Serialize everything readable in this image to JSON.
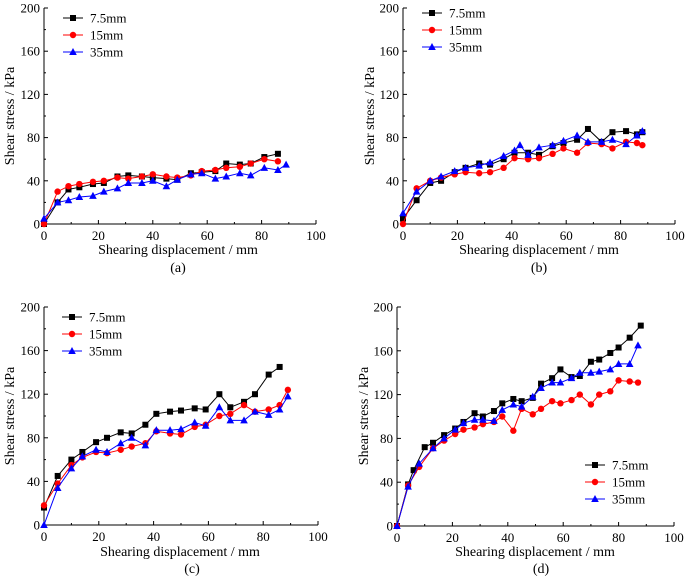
{
  "chart_data": [
    {
      "id": "a",
      "type": "line",
      "panel_label": "(a)",
      "xlabel": "Shearing displacement / mm",
      "ylabel": "Shear stress / kPa",
      "xlim": [
        0,
        100
      ],
      "ylim": [
        0,
        200
      ],
      "xticks": [
        0,
        20,
        40,
        60,
        80,
        100
      ],
      "yticks": [
        0,
        40,
        80,
        120,
        160,
        200
      ],
      "legend_position": "top-left",
      "series": [
        {
          "name": "7.5mm",
          "color": "#000000",
          "marker": "square",
          "x": [
            0,
            5,
            9,
            13,
            18,
            22,
            27,
            31,
            36,
            40,
            45,
            49,
            54,
            58,
            63,
            67,
            72,
            76,
            81,
            86
          ],
          "y": [
            0,
            20,
            32,
            34,
            37,
            38,
            44,
            45,
            44,
            43,
            42,
            41,
            47,
            48,
            49,
            56,
            55,
            56,
            62,
            65
          ]
        },
        {
          "name": "15mm",
          "color": "#ff0000",
          "marker": "circle",
          "x": [
            0,
            5,
            9,
            13,
            18,
            22,
            27,
            31,
            36,
            40,
            45,
            49,
            54,
            58,
            63,
            67,
            72,
            76,
            81,
            86
          ],
          "y": [
            0,
            30,
            35,
            37,
            39,
            40,
            43,
            42,
            44,
            46,
            44,
            43,
            45,
            49,
            50,
            52,
            53,
            56,
            60,
            58
          ]
        },
        {
          "name": "35mm",
          "color": "#0000ff",
          "marker": "triangle",
          "x": [
            0,
            5,
            9,
            13,
            18,
            22,
            27,
            31,
            36,
            40,
            45,
            49,
            54,
            58,
            63,
            67,
            72,
            76,
            81,
            86,
            89
          ],
          "y": [
            5,
            20,
            22,
            25,
            26,
            30,
            33,
            38,
            38,
            40,
            35,
            41,
            46,
            47,
            42,
            44,
            47,
            45,
            52,
            50,
            55
          ]
        }
      ]
    },
    {
      "id": "b",
      "type": "line",
      "panel_label": "(b)",
      "xlabel": "Shearing displacement / mm",
      "ylabel": "Shear stress / kPa",
      "xlim": [
        0,
        100
      ],
      "ylim": [
        0,
        200
      ],
      "xticks": [
        0,
        20,
        40,
        60,
        80,
        100
      ],
      "yticks": [
        0,
        40,
        80,
        120,
        160,
        200
      ],
      "legend_position": "top-left",
      "series": [
        {
          "name": "7.5mm",
          "color": "#000000",
          "marker": "square",
          "x": [
            0,
            5,
            10,
            14,
            19,
            23,
            28,
            32,
            37,
            41,
            46,
            50,
            55,
            59,
            64,
            68,
            73,
            77,
            82,
            86,
            88
          ],
          "y": [
            5,
            22,
            38,
            40,
            48,
            52,
            56,
            55,
            60,
            66,
            66,
            64,
            72,
            75,
            78,
            88,
            76,
            85,
            86,
            83,
            85
          ]
        },
        {
          "name": "15mm",
          "color": "#ff0000",
          "marker": "circle",
          "x": [
            0,
            5,
            10,
            14,
            19,
            23,
            28,
            32,
            37,
            41,
            46,
            50,
            55,
            59,
            64,
            68,
            73,
            77,
            82,
            86,
            88
          ],
          "y": [
            0,
            33,
            40,
            43,
            46,
            48,
            47,
            48,
            52,
            61,
            60,
            61,
            65,
            70,
            66,
            75,
            74,
            70,
            76,
            75,
            73
          ]
        },
        {
          "name": "35mm",
          "color": "#0000ff",
          "marker": "triangle",
          "x": [
            0,
            5,
            10,
            14,
            19,
            23,
            28,
            32,
            37,
            41,
            43,
            46,
            50,
            55,
            59,
            64,
            68,
            73,
            77,
            82,
            86,
            88
          ],
          "y": [
            10,
            30,
            40,
            44,
            49,
            52,
            54,
            57,
            63,
            68,
            73,
            64,
            71,
            73,
            77,
            82,
            76,
            76,
            78,
            74,
            82,
            86
          ]
        }
      ]
    },
    {
      "id": "c",
      "type": "line",
      "panel_label": "(c)",
      "xlabel": "Shearing displacement / mm",
      "ylabel": "Shear stress / kPa",
      "xlim": [
        0,
        100
      ],
      "ylim": [
        0,
        200
      ],
      "xticks": [
        0,
        20,
        40,
        60,
        80,
        100
      ],
      "yticks": [
        0,
        40,
        80,
        120,
        160,
        200
      ],
      "legend_position": "top-left",
      "series": [
        {
          "name": "7.5mm",
          "color": "#000000",
          "marker": "square",
          "x": [
            0,
            5,
            10,
            14,
            19,
            23,
            28,
            32,
            37,
            41,
            46,
            50,
            55,
            59,
            64,
            68,
            73,
            77,
            82,
            86
          ],
          "y": [
            16,
            45,
            60,
            67,
            76,
            80,
            85,
            84,
            92,
            102,
            104,
            105,
            107,
            106,
            120,
            108,
            113,
            120,
            138,
            145
          ]
        },
        {
          "name": "15mm",
          "color": "#ff0000",
          "marker": "circle",
          "x": [
            0,
            5,
            10,
            14,
            19,
            23,
            28,
            32,
            37,
            41,
            46,
            50,
            55,
            59,
            64,
            68,
            73,
            77,
            82,
            86,
            89
          ],
          "y": [
            18,
            38,
            55,
            62,
            67,
            66,
            69,
            72,
            75,
            86,
            84,
            83,
            90,
            92,
            100,
            102,
            110,
            104,
            106,
            110,
            124
          ]
        },
        {
          "name": "35mm",
          "color": "#0000ff",
          "marker": "triangle",
          "x": [
            0,
            5,
            10,
            14,
            19,
            23,
            28,
            32,
            37,
            41,
            46,
            50,
            55,
            59,
            64,
            68,
            73,
            77,
            82,
            86,
            89
          ],
          "y": [
            0,
            34,
            52,
            63,
            69,
            67,
            75,
            80,
            73,
            87,
            87,
            88,
            94,
            91,
            108,
            96,
            96,
            104,
            101,
            106,
            118
          ]
        }
      ]
    },
    {
      "id": "d",
      "type": "line",
      "panel_label": "(d)",
      "xlabel": "Shearing displacement / mm",
      "ylabel": "Shear stress / kPa",
      "xlim": [
        0,
        100
      ],
      "ylim": [
        0,
        200
      ],
      "xticks": [
        0,
        20,
        40,
        60,
        80,
        100
      ],
      "yticks": [
        0,
        40,
        80,
        120,
        160,
        200
      ],
      "legend_position": "bottom-right",
      "series": [
        {
          "name": "7.5mm",
          "color": "#000000",
          "marker": "square",
          "x": [
            0,
            4,
            6,
            10,
            13,
            17,
            21,
            24,
            28,
            31,
            35,
            38,
            42,
            45,
            49,
            52,
            56,
            59,
            63,
            66,
            70,
            73,
            77,
            80,
            84,
            88
          ],
          "y": [
            0,
            38,
            51,
            72,
            76,
            83,
            89,
            95,
            103,
            100,
            105,
            112,
            116,
            114,
            117,
            130,
            135,
            143,
            136,
            137,
            150,
            152,
            158,
            163,
            172,
            183
          ]
        },
        {
          "name": "15mm",
          "color": "#ff0000",
          "marker": "circle",
          "x": [
            0,
            4,
            8,
            13,
            17,
            21,
            24,
            28,
            31,
            35,
            38,
            42,
            45,
            49,
            52,
            56,
            59,
            63,
            66,
            70,
            73,
            77,
            80,
            84,
            87
          ],
          "y": [
            0,
            37,
            54,
            71,
            78,
            84,
            88,
            90,
            93,
            95,
            100,
            87,
            107,
            102,
            107,
            114,
            112,
            115,
            120,
            111,
            120,
            123,
            133,
            132,
            131
          ]
        },
        {
          "name": "35mm",
          "color": "#0000ff",
          "marker": "triangle",
          "x": [
            0,
            4,
            8,
            13,
            17,
            21,
            24,
            28,
            31,
            35,
            38,
            42,
            45,
            49,
            52,
            56,
            59,
            63,
            66,
            70,
            73,
            77,
            80,
            84,
            87
          ],
          "y": [
            0,
            36,
            57,
            71,
            80,
            88,
            94,
            97,
            97,
            96,
            106,
            111,
            109,
            118,
            126,
            131,
            131,
            135,
            140,
            140,
            141,
            143,
            148,
            148,
            165
          ]
        }
      ]
    }
  ]
}
